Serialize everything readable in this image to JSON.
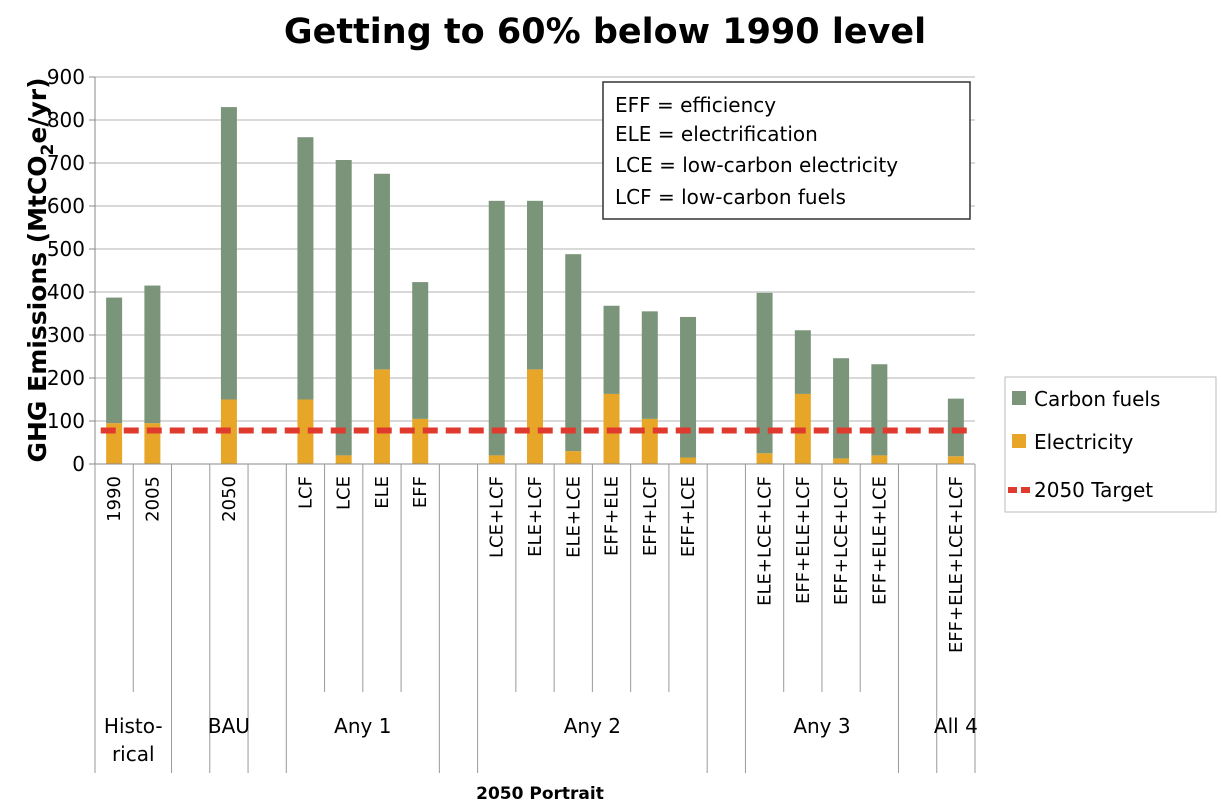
{
  "chart_data": {
    "type": "bar",
    "stacked": true,
    "title": "Getting to 60% below 1990 level",
    "ylabel_main": "GHG Emissions (MtCO",
    "ylabel_sub": "2",
    "ylabel_end": "e/yr)",
    "xlabel": "2050 Portrait",
    "ylim": [
      0,
      900
    ],
    "yticks": [
      0,
      100,
      200,
      300,
      400,
      500,
      600,
      700,
      800,
      900
    ],
    "grid": true,
    "categories": [
      "1990",
      "2005",
      "",
      "2050",
      "",
      "LCF",
      "LCE",
      "ELE",
      "EFF",
      "",
      "LCE+LCF",
      "ELE+LCF",
      "ELE+LCE",
      "EFF+ELE",
      "EFF+LCF",
      "EFF+LCE",
      "",
      "ELE+LCE+LCF",
      "EFF+ELE+LCF",
      "EFF+LCE+LCF",
      "EFF+ELE+LCE",
      "",
      "EFF+ELE+LCE+LCF"
    ],
    "series": [
      {
        "name": "Electricity",
        "color": "#e8a629",
        "values": [
          95,
          95,
          null,
          150,
          null,
          150,
          20,
          220,
          105,
          null,
          20,
          220,
          30,
          163,
          105,
          15,
          null,
          25,
          163,
          13,
          20,
          null,
          18
        ]
      },
      {
        "name": "Carbon fuels",
        "color": "#7a957a",
        "values": [
          292,
          320,
          null,
          680,
          null,
          610,
          687,
          455,
          318,
          null,
          592,
          392,
          458,
          205,
          250,
          327,
          null,
          373,
          148,
          233,
          212,
          null,
          134
        ]
      }
    ],
    "target": {
      "name": "2050 Target",
      "value": 78,
      "color": "#e03a2e"
    },
    "groups": [
      {
        "label_lines": [
          "Histo-",
          "rical"
        ],
        "first": 0,
        "last": 1
      },
      {
        "label_lines": [
          "BAU"
        ],
        "first": 3,
        "last": 3
      },
      {
        "label_lines": [
          "Any 1"
        ],
        "first": 5,
        "last": 8
      },
      {
        "label_lines": [
          "Any 2"
        ],
        "first": 10,
        "last": 15
      },
      {
        "label_lines": [
          "Any 3"
        ],
        "first": 17,
        "last": 20
      },
      {
        "label_lines": [
          "All 4"
        ],
        "first": 22,
        "last": 22
      }
    ],
    "legend": {
      "placement": "right",
      "items": [
        {
          "label": "Carbon fuels",
          "color": "#7a957a",
          "kind": "box"
        },
        {
          "label": "Electricity",
          "color": "#e8a629",
          "kind": "box"
        },
        {
          "label": "2050 Target",
          "color": "#e03a2e",
          "kind": "dashed-line"
        }
      ]
    },
    "annotation_lines": [
      "EFF = efficiency",
      "ELE = electrification",
      "LCE = low-carbon electricity",
      "LCF = low-carbon fuels"
    ]
  }
}
